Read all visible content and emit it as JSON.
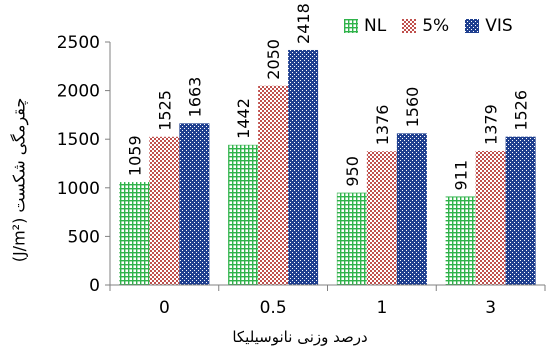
{
  "chart_data": {
    "type": "bar",
    "title": "",
    "xlabel": "درصد وزنی نانوسیلیکا",
    "ylabel": "چقرمگی شکست (J/m²)",
    "ylim": [
      0,
      2500
    ],
    "yticks": [
      0,
      500,
      1000,
      1500,
      2000,
      2500
    ],
    "categories": [
      "0",
      "0.5",
      "1",
      "3"
    ],
    "series": [
      {
        "name": "NL",
        "values": [
          1059,
          1442,
          950,
          911
        ]
      },
      {
        "name": "5%",
        "values": [
          1525,
          2050,
          1376,
          1379
        ]
      },
      {
        "name": "VIS",
        "values": [
          1663,
          2418,
          1560,
          1526
        ]
      }
    ],
    "data_labels": true,
    "legend_position": "top-right",
    "grid": false
  },
  "colors": {
    "NL": "#2fb34a",
    "5%": "#c0504d",
    "VIS": "#1f3f8f"
  }
}
